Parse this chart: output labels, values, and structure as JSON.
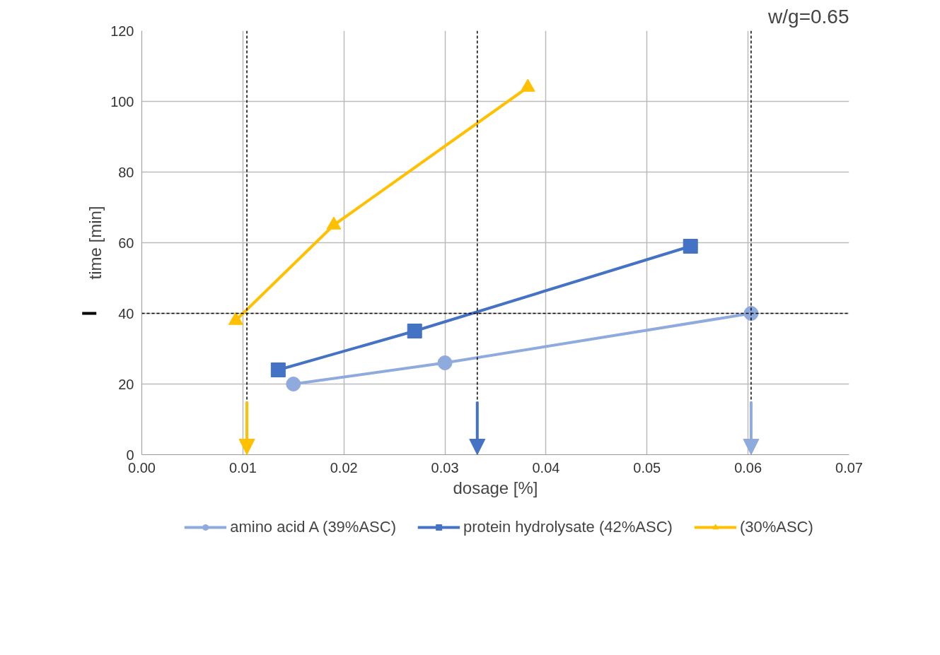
{
  "chart_data": {
    "type": "line",
    "xlabel": "dosage [%]",
    "ylabel": "time [min]",
    "annotations": [
      "w/g=0.65"
    ],
    "xlim": [
      0,
      0.07
    ],
    "xticks": [
      {
        "value": 0,
        "label": "0.00"
      },
      {
        "value": 0.01,
        "label": "0.01"
      },
      {
        "value": 0.02,
        "label": "0.02"
      },
      {
        "value": 0.03,
        "label": "0.03"
      },
      {
        "value": 0.04,
        "label": "0.04"
      },
      {
        "value": 0.05,
        "label": "0.05"
      },
      {
        "value": 0.06,
        "label": "0.06"
      },
      {
        "value": 0.07,
        "label": "0.07"
      }
    ],
    "ylim": [
      0,
      120
    ],
    "yticks": [
      0,
      20,
      40,
      60,
      80,
      100,
      120
    ],
    "grid": true,
    "legend": "bottom",
    "series": [
      {
        "name": "amino acid A (39%ASC)",
        "color": "#8faadc",
        "marker": "circle",
        "x": [
          0.015,
          0.03,
          0.0603
        ],
        "values": [
          20,
          26,
          40
        ]
      },
      {
        "name": "protein hydrolysate (42%ASC)",
        "color": "#4472c4",
        "marker": "square",
        "x": [
          0.0135,
          0.027,
          0.0543
        ],
        "values": [
          24,
          35,
          59
        ]
      },
      {
        "name": "(30%ASC)",
        "color": "#ffc000",
        "marker": "triangle",
        "x": [
          0.0093,
          0.019,
          0.0382
        ],
        "values": [
          38,
          65,
          104
        ]
      }
    ],
    "ref_lines": [
      {
        "axis": "y",
        "value": 40,
        "color": "#000000",
        "line_style": "dashed"
      },
      {
        "axis": "x",
        "value": 0.0104,
        "color": "#000000",
        "line_style": "dashed"
      },
      {
        "axis": "x",
        "value": 0.0332,
        "color": "#000000",
        "line_style": "dashed"
      },
      {
        "axis": "x",
        "value": 0.0603,
        "color": "#000000",
        "line_style": "dashed"
      }
    ]
  }
}
